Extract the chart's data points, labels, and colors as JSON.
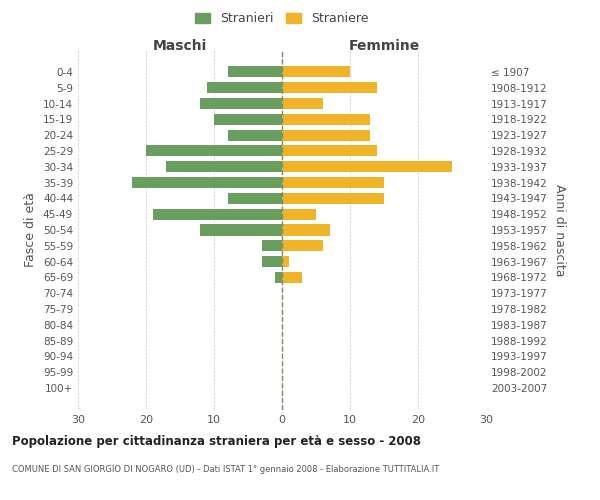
{
  "age_groups": [
    "0-4",
    "5-9",
    "10-14",
    "15-19",
    "20-24",
    "25-29",
    "30-34",
    "35-39",
    "40-44",
    "45-49",
    "50-54",
    "55-59",
    "60-64",
    "65-69",
    "70-74",
    "75-79",
    "80-84",
    "85-89",
    "90-94",
    "95-99",
    "100+"
  ],
  "birth_years": [
    "2003-2007",
    "1998-2002",
    "1993-1997",
    "1988-1992",
    "1983-1987",
    "1978-1982",
    "1973-1977",
    "1968-1972",
    "1963-1967",
    "1958-1962",
    "1953-1957",
    "1948-1952",
    "1943-1947",
    "1938-1942",
    "1933-1937",
    "1928-1932",
    "1923-1927",
    "1918-1922",
    "1913-1917",
    "1908-1912",
    "≤ 1907"
  ],
  "males": [
    8,
    11,
    12,
    10,
    8,
    20,
    17,
    22,
    8,
    19,
    12,
    3,
    3,
    1,
    0,
    0,
    0,
    0,
    0,
    0,
    0
  ],
  "females": [
    10,
    14,
    6,
    13,
    13,
    14,
    25,
    15,
    15,
    5,
    7,
    6,
    1,
    3,
    0,
    0,
    0,
    0,
    0,
    0,
    0
  ],
  "male_color": "#6a9e5e",
  "female_color": "#f0b429",
  "background_color": "#ffffff",
  "grid_color": "#cccccc",
  "title": "Popolazione per cittadinanza straniera per età e sesso - 2008",
  "subtitle": "COMUNE DI SAN GIORGIO DI NOGARO (UD) - Dati ISTAT 1° gennaio 2008 - Elaborazione TUTTITALIA.IT",
  "xlabel_left": "Maschi",
  "xlabel_right": "Femmine",
  "ylabel_left": "Fasce di età",
  "ylabel_right": "Anni di nascita",
  "legend_male": "Stranieri",
  "legend_female": "Straniere",
  "xlim": 30,
  "center_line_color": "#888866"
}
